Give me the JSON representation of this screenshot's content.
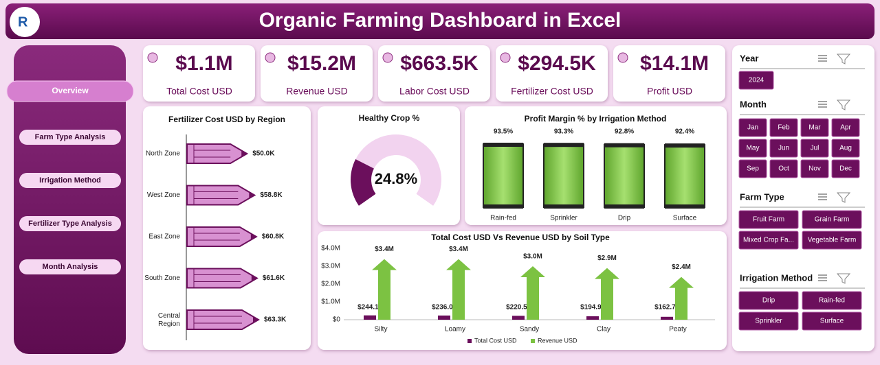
{
  "header": {
    "title": "Organic Farming Dashboard in Excel"
  },
  "nav": [
    "Overview",
    "Farm Type Analysis",
    "Irrigation Method",
    "Fertilizer Type Analysis",
    "Month Analysis"
  ],
  "kpis": [
    {
      "value": "$1.1M",
      "label": "Total Cost USD"
    },
    {
      "value": "$15.2M",
      "label": "Revenue USD"
    },
    {
      "value": "$663.5K",
      "label": "Labor Cost USD"
    },
    {
      "value": "$294.5K",
      "label": "Fertilizer Cost USD"
    },
    {
      "value": "$14.1M",
      "label": "Profit USD"
    }
  ],
  "chart_data": [
    {
      "type": "pencil",
      "title": "Fertilizer Cost USD by Region",
      "categories": [
        "North Zone",
        "West Zone",
        "East Zone",
        "South Zone",
        "Central Region"
      ],
      "values": [
        50000,
        58800,
        60800,
        61600,
        63300
      ],
      "value_labels": [
        "$50.0K",
        "$58.8K",
        "$60.8K",
        "$61.6K",
        "$63.3K"
      ],
      "color": "#d891d1"
    },
    {
      "type": "gauge",
      "title": "Healthy Crop %",
      "values": [
        24.8
      ],
      "value_labels": [
        "24.8%"
      ],
      "color": "#6b0f5c"
    },
    {
      "type": "bar",
      "title": "Profit Margin % by Irrigation Method",
      "categories": [
        "Rain-fed",
        "Sprinkler",
        "Drip",
        "Surface"
      ],
      "values": [
        93.5,
        93.3,
        92.8,
        92.4
      ],
      "value_labels": [
        "93.5%",
        "93.3%",
        "92.8%",
        "92.4%"
      ],
      "color": "#7cc242"
    },
    {
      "type": "bar-arrow",
      "title": "Total Cost USD Vs Revenue USD by Soil Type",
      "categories": [
        "Silty",
        "Loamy",
        "Sandy",
        "Clay",
        "Peaty"
      ],
      "series": [
        {
          "name": "Total Cost USD",
          "color": "#6b0f5c",
          "values": [
            244100,
            236000,
            220500,
            194900,
            162700
          ],
          "value_labels": [
            "$244.1K",
            "$236.0K",
            "$220.5K",
            "$194.9K",
            "$162.7K"
          ]
        },
        {
          "name": "Revenue USD",
          "color": "#7cc242",
          "values": [
            3400000,
            3400000,
            3000000,
            2900000,
            2400000
          ],
          "value_labels": [
            "$3.4M",
            "$3.4M",
            "$3.0M",
            "$2.9M",
            "$2.4M"
          ]
        }
      ],
      "ylim": [
        0,
        4000000
      ],
      "yticks": [
        {
          "value": 0,
          "label": "$0"
        },
        {
          "value": 1000000,
          "label": "$1.0M"
        },
        {
          "value": 2000000,
          "label": "$2.0M"
        },
        {
          "value": 3000000,
          "label": "$3.0M"
        },
        {
          "value": 4000000,
          "label": "$4.0M"
        }
      ],
      "grid": false,
      "legend": "bottom"
    }
  ],
  "slicers": [
    {
      "title": "Year",
      "items": [
        "2024"
      ]
    },
    {
      "title": "Month",
      "items": [
        "Jan",
        "Feb",
        "Mar",
        "Apr",
        "May",
        "Jun",
        "Jul",
        "Aug",
        "Sep",
        "Oct",
        "Nov",
        "Dec"
      ]
    },
    {
      "title": "Farm Type",
      "items": [
        "Fruit Farm",
        "Grain Farm",
        "Mixed Crop Fa...",
        "Vegetable Farm"
      ]
    },
    {
      "title": "Irrigation Method",
      "items": [
        "Drip",
        "Rain-fed",
        "Sprinkler",
        "Surface"
      ]
    }
  ]
}
